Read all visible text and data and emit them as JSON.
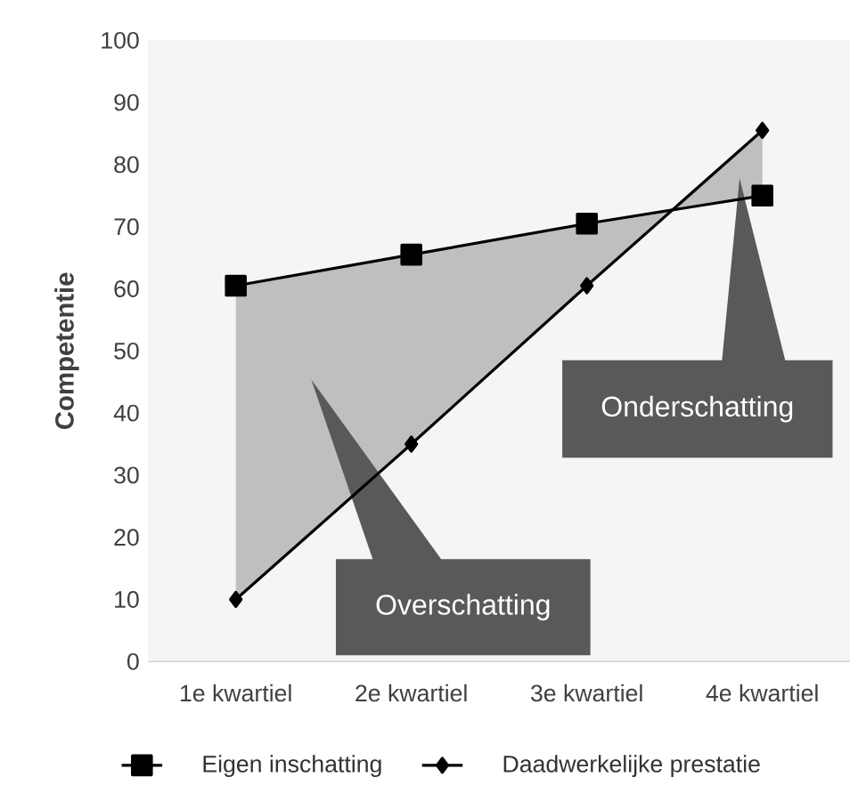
{
  "chart_data": {
    "type": "line",
    "ylabel": "Competentie",
    "categories": [
      "1e kwartiel",
      "2e kwartiel",
      "3e kwartiel",
      "4e kwartiel"
    ],
    "series": [
      {
        "name": "Eigen inschatting",
        "color": "#000000",
        "marker": "square",
        "values": [
          60.5,
          65.5,
          70.5,
          75
        ],
        "lower": [
          10,
          35,
          60.5,
          85.5
        ],
        "upper": [
          60.5,
          65.5,
          70.5,
          75
        ]
      },
      {
        "name": "Daadwerkelijke prestatie",
        "color": "#000000",
        "marker": "diamond",
        "values": [
          10,
          35,
          60.5,
          85.5
        ]
      }
    ],
    "ylim": [
      0,
      100
    ],
    "yticks": [
      0,
      10,
      20,
      30,
      40,
      50,
      60,
      70,
      80,
      90,
      100
    ],
    "annotations": [
      "Overschatting",
      "Onderschatting"
    ],
    "legend": "bottom",
    "grid": false
  }
}
